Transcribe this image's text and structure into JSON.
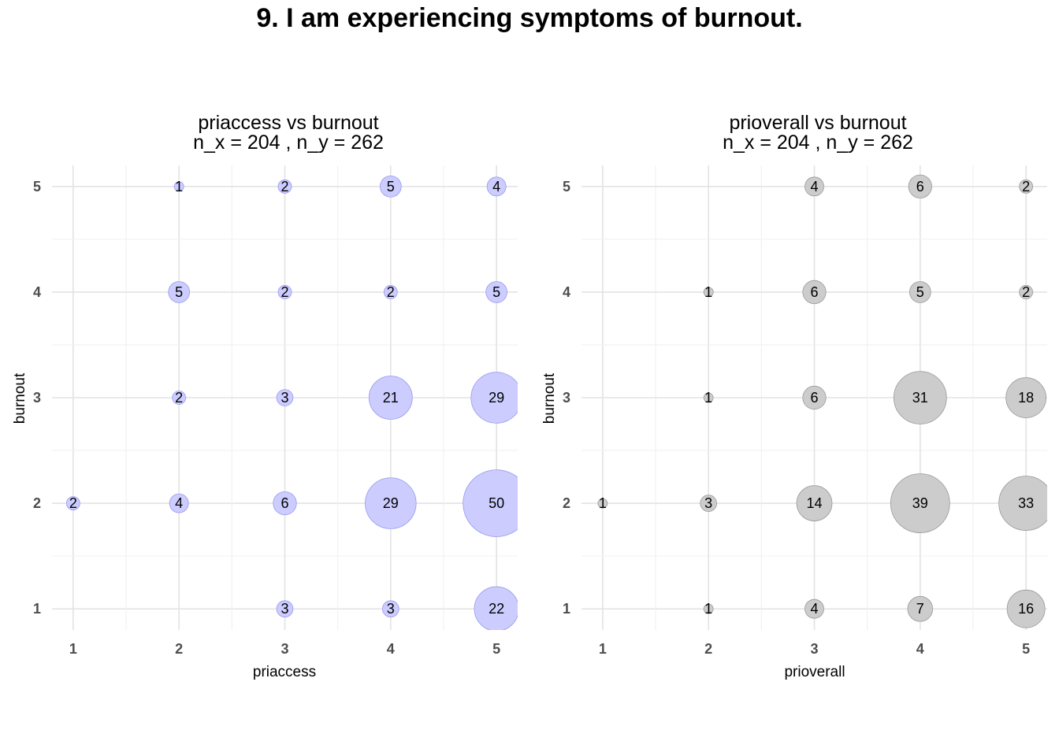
{
  "title": "9. I am experiencing symptoms of burnout.",
  "chart_data": [
    {
      "type": "scatter",
      "title": "priaccess vs burnout",
      "subtitle": "n_x = 204 , n_y = 262",
      "xlabel": "priaccess",
      "ylabel": "burnout",
      "xticks": [
        "1",
        "2",
        "3",
        "4",
        "5"
      ],
      "yticks": [
        "1",
        "2",
        "3",
        "4",
        "5"
      ],
      "xlim": [
        0.8,
        5.2
      ],
      "ylim": [
        0.8,
        5.2
      ],
      "grid": true,
      "bubble_color": "#ccccff",
      "bubble_stroke": "#9999ee",
      "points": [
        {
          "x": 2,
          "y": 5,
          "n": 1
        },
        {
          "x": 3,
          "y": 5,
          "n": 2
        },
        {
          "x": 4,
          "y": 5,
          "n": 5
        },
        {
          "x": 5,
          "y": 5,
          "n": 4
        },
        {
          "x": 2,
          "y": 4,
          "n": 5
        },
        {
          "x": 3,
          "y": 4,
          "n": 2
        },
        {
          "x": 4,
          "y": 4,
          "n": 2
        },
        {
          "x": 5,
          "y": 4,
          "n": 5
        },
        {
          "x": 2,
          "y": 3,
          "n": 2
        },
        {
          "x": 3,
          "y": 3,
          "n": 3
        },
        {
          "x": 4,
          "y": 3,
          "n": 21
        },
        {
          "x": 5,
          "y": 3,
          "n": 29
        },
        {
          "x": 1,
          "y": 2,
          "n": 2
        },
        {
          "x": 2,
          "y": 2,
          "n": 4
        },
        {
          "x": 3,
          "y": 2,
          "n": 6
        },
        {
          "x": 4,
          "y": 2,
          "n": 29
        },
        {
          "x": 5,
          "y": 2,
          "n": 50
        },
        {
          "x": 3,
          "y": 1,
          "n": 3
        },
        {
          "x": 4,
          "y": 1,
          "n": 3
        },
        {
          "x": 5,
          "y": 1,
          "n": 22
        }
      ]
    },
    {
      "type": "scatter",
      "title": "prioverall vs burnout",
      "subtitle": "n_x = 204 , n_y = 262",
      "xlabel": "prioverall",
      "ylabel": "burnout",
      "xticks": [
        "1",
        "2",
        "3",
        "4",
        "5"
      ],
      "yticks": [
        "1",
        "2",
        "3",
        "4",
        "5"
      ],
      "xlim": [
        0.8,
        5.2
      ],
      "ylim": [
        0.8,
        5.2
      ],
      "grid": true,
      "bubble_color": "#cccccc",
      "bubble_stroke": "#999999",
      "points": [
        {
          "x": 3,
          "y": 5,
          "n": 4
        },
        {
          "x": 4,
          "y": 5,
          "n": 6
        },
        {
          "x": 5,
          "y": 5,
          "n": 2
        },
        {
          "x": 2,
          "y": 4,
          "n": 1
        },
        {
          "x": 3,
          "y": 4,
          "n": 6
        },
        {
          "x": 4,
          "y": 4,
          "n": 5
        },
        {
          "x": 5,
          "y": 4,
          "n": 2
        },
        {
          "x": 2,
          "y": 3,
          "n": 1
        },
        {
          "x": 3,
          "y": 3,
          "n": 6
        },
        {
          "x": 4,
          "y": 3,
          "n": 31
        },
        {
          "x": 5,
          "y": 3,
          "n": 18
        },
        {
          "x": 1,
          "y": 2,
          "n": 1
        },
        {
          "x": 2,
          "y": 2,
          "n": 3
        },
        {
          "x": 3,
          "y": 2,
          "n": 14
        },
        {
          "x": 4,
          "y": 2,
          "n": 39
        },
        {
          "x": 5,
          "y": 2,
          "n": 33
        },
        {
          "x": 2,
          "y": 1,
          "n": 1
        },
        {
          "x": 3,
          "y": 1,
          "n": 4
        },
        {
          "x": 4,
          "y": 1,
          "n": 7
        },
        {
          "x": 5,
          "y": 1,
          "n": 16
        }
      ]
    }
  ]
}
